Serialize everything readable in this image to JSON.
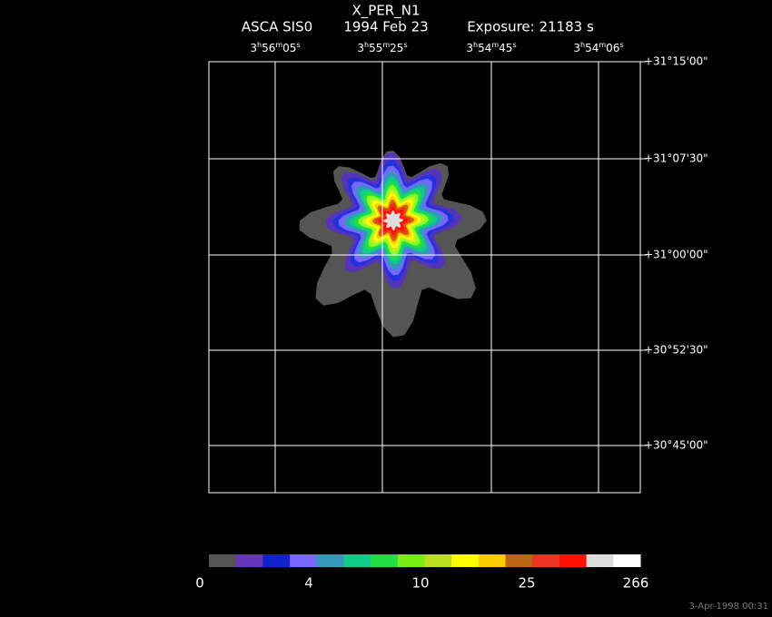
{
  "title": "X_PER_N1",
  "subtitle": {
    "instrument": "ASCA SIS0",
    "date": "1994 Feb 23",
    "exposure": "Exposure: 21183 s"
  },
  "ra_labels": [
    [
      "3",
      "h",
      "56",
      "m",
      "05",
      "s"
    ],
    [
      "3",
      "h",
      "55",
      "m",
      "25",
      "s"
    ],
    [
      "3",
      "h",
      "54",
      "m",
      "45",
      "s"
    ],
    [
      "3",
      "h",
      "54",
      "m",
      "06",
      "s"
    ]
  ],
  "dec_labels": [
    "+31°15'00\"",
    "+31°07'30\"",
    "+31°00'00\"",
    "+30°52'30\"",
    "+30°45'00\""
  ],
  "colorbar_labels": [
    "0",
    "4",
    "10",
    "25",
    "266"
  ],
  "timestamp": "3-Apr-1998 00:31"
}
